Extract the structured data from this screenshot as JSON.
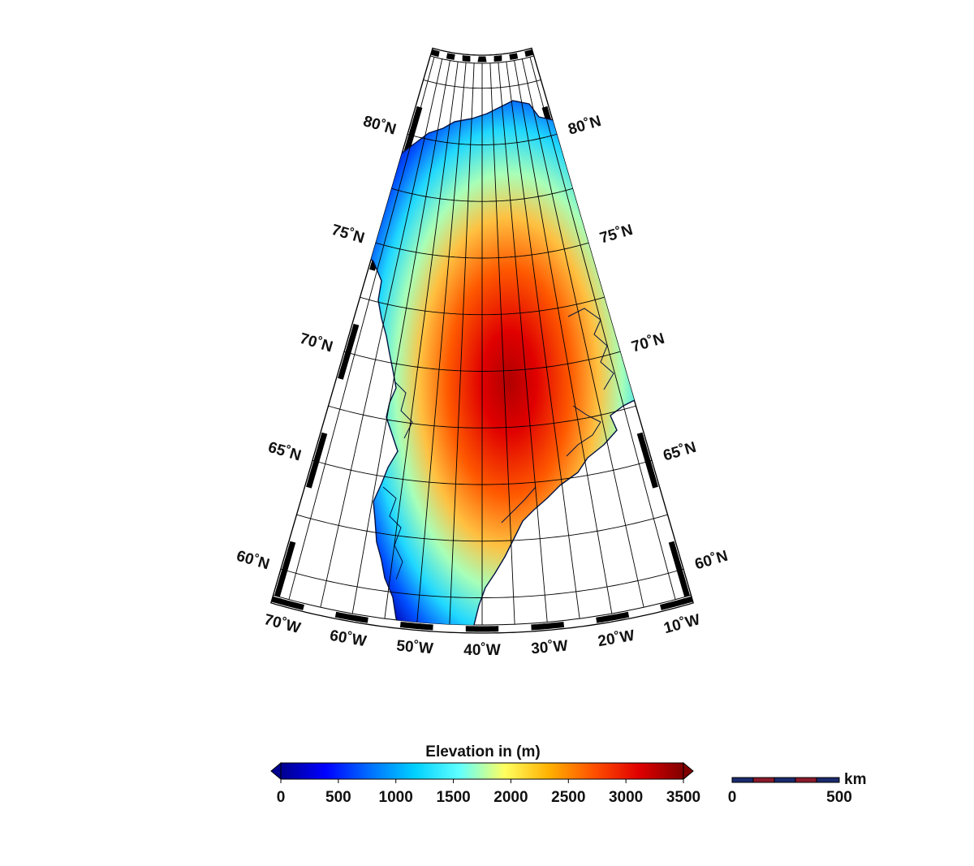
{
  "map": {
    "region": "Greenland",
    "projection": "conic",
    "meridian_labels": [
      "70˚W",
      "60˚W",
      "50˚W",
      "40˚W",
      "30˚W",
      "20˚W",
      "10˚W"
    ],
    "parallel_labels": [
      "60˚N",
      "65˚N",
      "70˚N",
      "75˚N",
      "80˚N"
    ],
    "graticule_lon_step_deg": 5,
    "graticule_lat_step_deg": 2.5
  },
  "colorbar": {
    "title": "Elevation in (m)",
    "ticks": [
      "0",
      "500",
      "1000",
      "1500",
      "2000",
      "2500",
      "3000",
      "3500"
    ],
    "min": 0,
    "max": 3500,
    "colormap": [
      "#000090",
      "#0000ff",
      "#0070ff",
      "#00d0ff",
      "#60ffff",
      "#ffff60",
      "#ffb000",
      "#ff5000",
      "#e00000",
      "#800000"
    ]
  },
  "scalebar": {
    "unit": "km",
    "start_label": "0",
    "end_label": "500"
  }
}
